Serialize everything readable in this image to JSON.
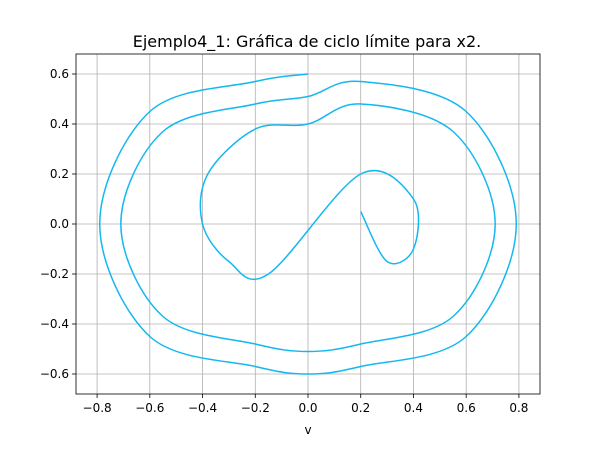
{
  "chart_data": {
    "type": "line",
    "title": "Ejemplo4_1: Gráfica de ciclo límite para x2.",
    "xlabel": "v",
    "ylabel": "",
    "xlim": [
      -0.88,
      0.88
    ],
    "ylim": [
      -0.68,
      0.68
    ],
    "xticks": [
      -0.8,
      -0.6,
      -0.4,
      -0.2,
      0.0,
      0.2,
      0.4,
      0.6,
      0.8
    ],
    "xtick_labels": [
      "−0.8",
      "−0.6",
      "−0.4",
      "−0.2",
      "0.0",
      "0.2",
      "0.4",
      "0.6",
      "0.8"
    ],
    "yticks": [
      -0.6,
      -0.4,
      -0.2,
      0.0,
      0.2,
      0.4,
      0.6
    ],
    "ytick_labels": [
      "−0.6",
      "−0.4",
      "−0.2",
      "0.0",
      "0.2",
      "0.4",
      "0.6"
    ],
    "grid": true,
    "series": [
      {
        "color": "#14b8f0",
        "x": [
          0.0,
          -0.2,
          -0.6,
          -0.79,
          -0.6,
          -0.2,
          0.0,
          0.2,
          0.6,
          0.79,
          0.6,
          0.2,
          0.0,
          -0.2,
          -0.55,
          -0.71,
          -0.55,
          -0.2,
          0.0,
          0.2,
          0.55,
          0.71,
          0.55,
          0.2,
          0.0,
          -0.2,
          -0.38,
          -0.4,
          -0.3,
          -0.15,
          0.2,
          0.4,
          0.4,
          0.3,
          0.2
        ],
        "y": [
          0.6,
          0.57,
          0.45,
          0.0,
          -0.45,
          -0.57,
          -0.6,
          -0.57,
          -0.45,
          0.0,
          0.45,
          0.57,
          0.51,
          0.48,
          0.37,
          0.0,
          -0.37,
          -0.48,
          -0.51,
          -0.48,
          -0.37,
          0.0,
          0.37,
          0.48,
          0.4,
          0.38,
          0.2,
          0.0,
          -0.15,
          -0.2,
          0.2,
          0.1,
          -0.1,
          -0.15,
          0.05
        ]
      }
    ]
  }
}
